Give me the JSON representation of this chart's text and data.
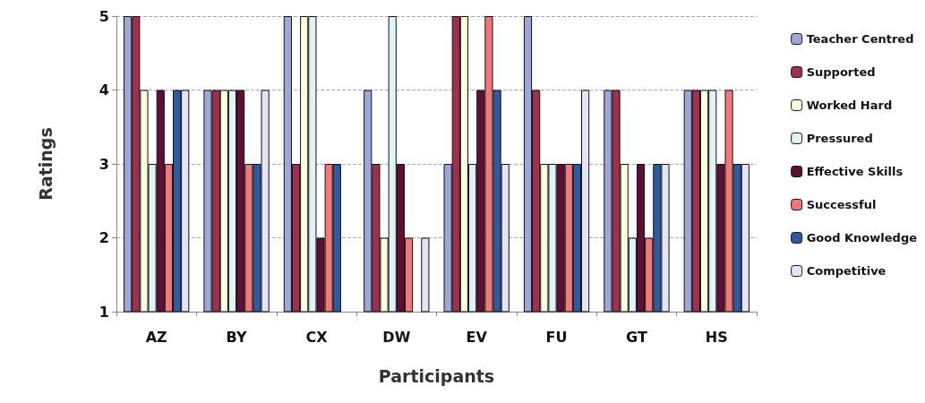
{
  "chart_data": {
    "type": "bar",
    "xlabel": "Participants",
    "ylabel": "Ratings",
    "categories": [
      "AZ",
      "BY",
      "CX",
      "DW",
      "EV",
      "FU",
      "GT",
      "HS"
    ],
    "series": [
      {
        "name": "Teacher Centred",
        "color": "#9ea8d8",
        "values": [
          5,
          4,
          5,
          4,
          3,
          5,
          4,
          4
        ]
      },
      {
        "name": "Supported",
        "color": "#a0304f",
        "values": [
          5,
          4,
          3,
          3,
          5,
          4,
          4,
          4
        ]
      },
      {
        "name": "Worked Hard",
        "color": "#fffde0",
        "values": [
          4,
          4,
          5,
          2,
          5,
          3,
          3,
          4
        ]
      },
      {
        "name": "Pressured",
        "color": "#e0f4f8",
        "values": [
          3,
          4,
          5,
          5,
          3,
          3,
          2,
          4
        ]
      },
      {
        "name": "Effective Skills",
        "color": "#5e0f33",
        "values": [
          4,
          4,
          2,
          3,
          4,
          3,
          3,
          3
        ]
      },
      {
        "name": "Successful",
        "color": "#f07878",
        "values": [
          3,
          3,
          3,
          2,
          5,
          3,
          2,
          4
        ]
      },
      {
        "name": "Good Knowledge",
        "color": "#2f5aa0",
        "values": [
          4,
          3,
          3,
          null,
          4,
          3,
          3,
          3
        ]
      },
      {
        "name": "Competitive",
        "color": "#e4e4f8",
        "values": [
          4,
          4,
          null,
          2,
          3,
          4,
          3,
          3
        ]
      }
    ],
    "ylim": [
      1,
      5
    ],
    "yticks": [
      1,
      2,
      3,
      4,
      5
    ],
    "grid": "y",
    "legend": "right"
  }
}
